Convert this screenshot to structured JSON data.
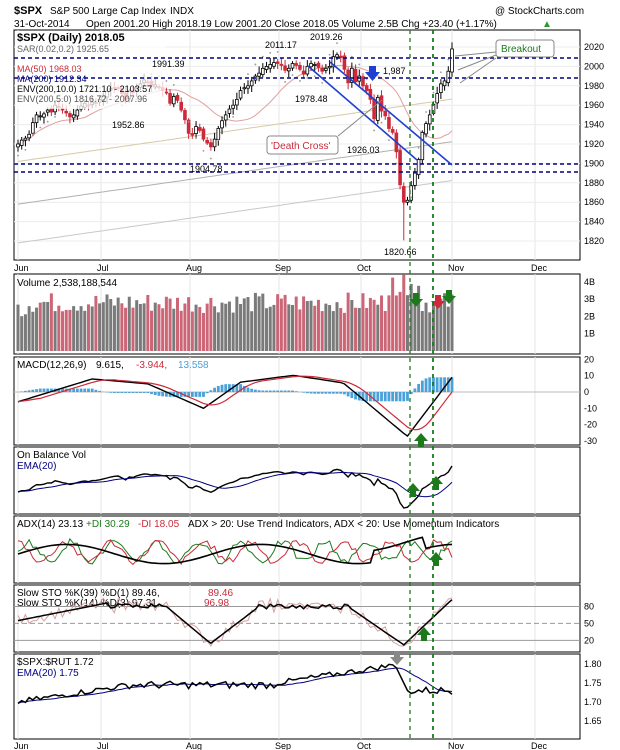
{
  "header": {
    "symbol": "$SPX",
    "name": "S&P 500 Large Cap Index",
    "exchange": "INDX",
    "watermark": "@ StockCharts.com",
    "date": "31-Oct-2014",
    "quote": "Open 2001.20  High 2018.19  Low 2001.20  Close 2018.05  Volume 2.5B  Chg +23.40 (+1.17%)",
    "quote_arrow": "▲"
  },
  "months": [
    "Jun",
    "Jul",
    "Aug",
    "Sep",
    "Oct",
    "Nov",
    "Dec"
  ],
  "colors": {
    "up": "#000000",
    "down": "#cc2a3a",
    "ma50": "#e05050",
    "ma200": "#000080",
    "env": "#c8c8c8",
    "green": "#1c7a1c",
    "blue": "#1f5fd0",
    "vol_up": "#7a7a7a",
    "vol_down": "#cc6677",
    "macd_hist": "#4aa0d8"
  },
  "chart_data": [
    {
      "type": "line",
      "title": "$SPX (Daily) 2018.05",
      "legend": [
        "$SPX (Daily) 2018.05",
        "SAR(0.02,0.2) 1925.65",
        "MA(50) 1968.03",
        "MA(200) 1912.34",
        "ENV(200,10.0) 1721.10 - 2103.57",
        "ENV(200,5.0) 1816.72 - 2007.96"
      ],
      "ylim": [
        1800,
        2040
      ],
      "yticks": [
        "2020",
        "2000",
        "1980",
        "1960",
        "1940",
        "1920",
        "1900",
        "1880",
        "1860",
        "1840",
        "1820"
      ],
      "price_closes": [
        1920,
        1924,
        1926,
        1930,
        1942,
        1950,
        1949,
        1951,
        1955,
        1953,
        1960,
        1958,
        1955,
        1952,
        1948,
        1950,
        1955,
        1959,
        1962,
        1960,
        1963,
        1962,
        1966,
        1970,
        1974,
        1977,
        1978,
        1978,
        1972,
        1965,
        1975,
        1973,
        1978,
        1982,
        1986,
        1984,
        1980,
        1981,
        1978,
        1975,
        1973,
        1962,
        1969,
        1965,
        1955,
        1945,
        1931,
        1929,
        1938,
        1934,
        1925,
        1921,
        1917,
        1925,
        1936,
        1944,
        1950,
        1956,
        1960,
        1966,
        1975,
        1978,
        1980,
        1985,
        1990,
        1993,
        1998,
        2000,
        2002,
        2004,
        2003,
        2001,
        1996,
        1998,
        2003,
        2001,
        1997,
        1992,
        2000,
        2003,
        2002,
        1999,
        1995,
        1998,
        2000,
        2010,
        2012,
        2009,
        1997,
        1983,
        1998,
        1984,
        1990,
        1980,
        1975,
        1966,
        1946,
        1968,
        1954,
        1949,
        1936,
        1932,
        1912,
        1878,
        1860,
        1862,
        1877,
        1890,
        1904,
        1932,
        1941,
        1950,
        1961,
        1972,
        1982,
        1985,
        1995,
        2018
      ],
      "price_levels": [
        {
          "value": 2011.17,
          "label": "2011.17"
        },
        {
          "value": 2019.26,
          "label": "2019.26"
        },
        {
          "value": 1991.39,
          "label": "1991.39"
        },
        {
          "value": 1978.48,
          "label": "1978.48"
        },
        {
          "value": 1952.86,
          "label": "1952.86"
        },
        {
          "value": 1926.03,
          "label": "1926.03"
        },
        {
          "value": 1904.78,
          "label": "1904.78"
        },
        {
          "value": 1820.66,
          "label": "1820.66"
        },
        {
          "value": 1987,
          "label": "1,987"
        }
      ],
      "annotations": [
        "Breakout",
        "'Death Cross'"
      ]
    },
    {
      "type": "bar",
      "title": "Volume 2,538,188,544",
      "yticks": [
        "4B",
        "3B",
        "2B",
        "1B"
      ],
      "ylim": [
        0,
        4.6
      ]
    },
    {
      "type": "line",
      "title": "MACD(12,26,9) 9.615, -3.944, 13.558",
      "macd_label": "MACD(12,26,9)",
      "macd_values": "9.615,",
      "signal_value": "-3.944,",
      "hist_value": "13.558",
      "ylim": [
        -35,
        22
      ],
      "yticks": [
        "20",
        "10",
        "0",
        "-10",
        "-20",
        "-30"
      ]
    },
    {
      "type": "line",
      "title": "On Balance Vol",
      "legend": [
        "On Balance Vol",
        "EMA(20)"
      ]
    },
    {
      "type": "line",
      "title": "ADX(14) 23.13 +DI 30.29 -DI 18.05 ADX > 20: Use Trend Indicators, ADX < 20: Use Momentum Indicators",
      "adx_label": "ADX(14) 23.13",
      "pdi_label": "+DI 30.29",
      "mdi_label": "-DI 18.05",
      "note": "ADX > 20: Use Trend Indicators, ADX < 20: Use Momentum Indicators"
    },
    {
      "type": "line",
      "title": "Slow STO",
      "legend": [
        "Slow STO %K(39) %D(1) 89.46, 89.46",
        "Slow STO %K(14) %D(3) 97.31, 96.98"
      ],
      "sto1_label": "Slow STO %K(39) %D(1) 89.46,",
      "sto1_val": "89.46",
      "sto2_label": "Slow STO %K(14) %D(3) 97.31,",
      "sto2_val": "96.98",
      "ylim": [
        10,
        95
      ],
      "yticks": [
        "80",
        "50",
        "20"
      ]
    },
    {
      "type": "line",
      "title": "$SPX:$RUT 1.72",
      "legend": [
        "$SPX:$RUT 1.72",
        "EMA(20) 1.75"
      ],
      "ylim": [
        1.63,
        1.83
      ],
      "yticks": [
        "1.80",
        "1.75",
        "1.70",
        "1.65"
      ]
    }
  ]
}
